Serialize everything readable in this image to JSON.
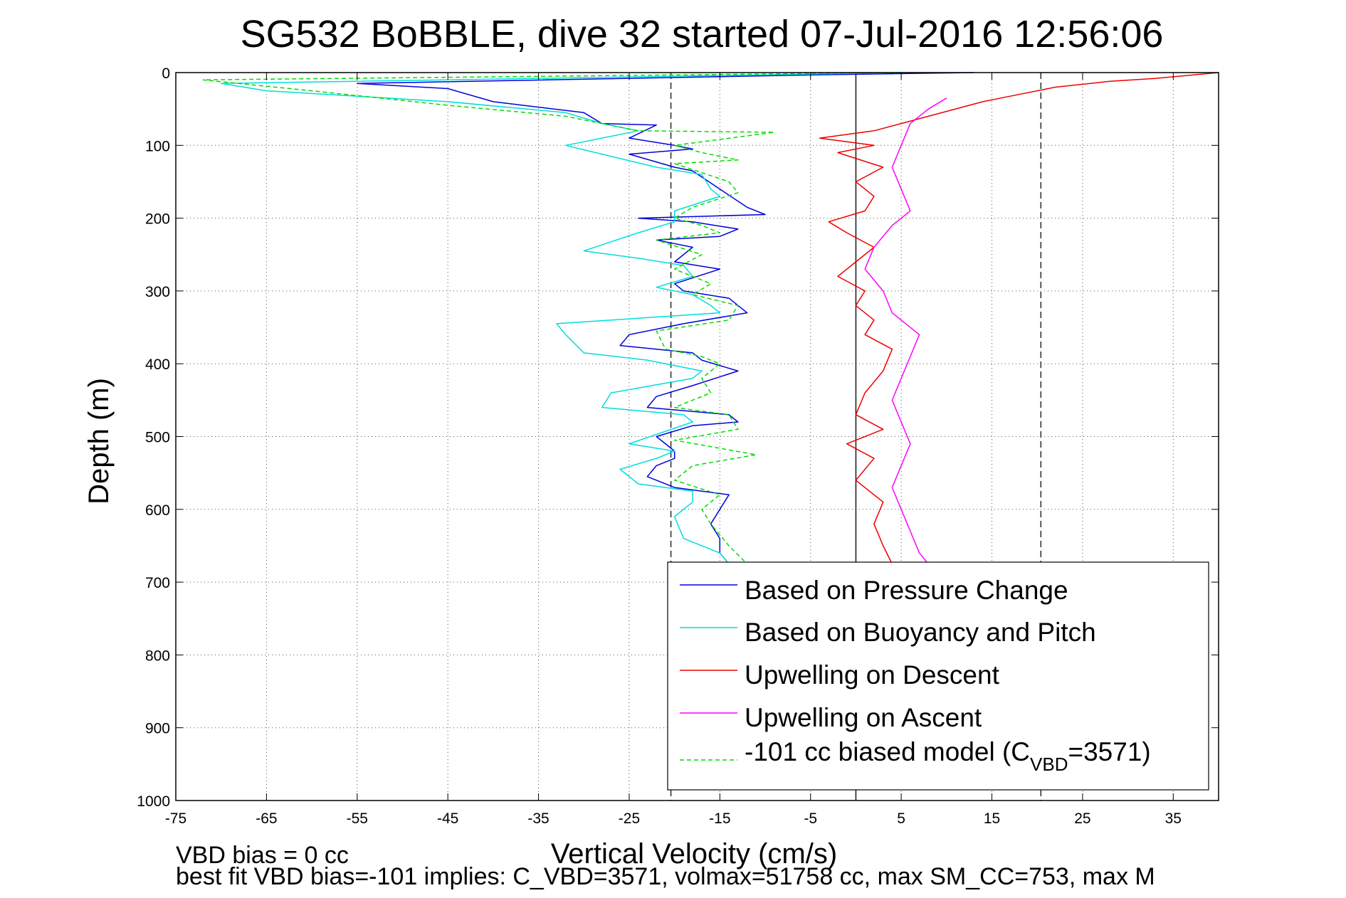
{
  "chart_data": {
    "type": "line",
    "title": "SG532 BoBBLE, dive 32 started 07-Jul-2016 12:56:06",
    "xlabel": "Vertical Velocity (cm/s)",
    "ylabel": "Depth (m)",
    "xlim": [
      -75,
      40
    ],
    "ylim": [
      0,
      1000
    ],
    "y_reversed": true,
    "grid": true,
    "x_ticks": [
      "-75",
      "-65",
      "-55",
      "-45",
      "-35",
      "-25",
      "-15",
      "-5",
      "5",
      "15",
      "25",
      "35"
    ],
    "x_tick_values": [
      -75,
      -65,
      -55,
      -45,
      -35,
      -25,
      -15,
      -5,
      5,
      15,
      25,
      35
    ],
    "y_ticks": [
      "0",
      "100",
      "200",
      "300",
      "400",
      "500",
      "600",
      "700",
      "800",
      "900",
      "1000"
    ],
    "y_tick_values": [
      0,
      100,
      200,
      300,
      400,
      500,
      600,
      700,
      800,
      900,
      1000
    ],
    "reference_lines": [
      {
        "x": -20.4,
        "style": "dashed",
        "color": "#333333"
      },
      {
        "x": 0,
        "style": "solid",
        "color": "#222222"
      },
      {
        "x": 20.4,
        "style": "dashed",
        "color": "#333333"
      }
    ],
    "legend_position": "lower-right",
    "series": [
      {
        "name": "Based on Pressure Change",
        "color": "#0000dd",
        "dash": false,
        "points": [
          [
            13,
            0
          ],
          [
            -4,
            3
          ],
          [
            -55,
            15
          ],
          [
            -45,
            22
          ],
          [
            -40,
            40
          ],
          [
            -30,
            55
          ],
          [
            -28,
            70
          ],
          [
            -22,
            72
          ],
          [
            -25,
            90
          ],
          [
            -20,
            100
          ],
          [
            -18,
            105
          ],
          [
            -25,
            112
          ],
          [
            -20,
            130
          ],
          [
            -18,
            135
          ],
          [
            -15,
            160
          ],
          [
            -12,
            185
          ],
          [
            -10,
            195
          ],
          [
            -24,
            200
          ],
          [
            -18,
            205
          ],
          [
            -13,
            215
          ],
          [
            -15,
            225
          ],
          [
            -22,
            230
          ],
          [
            -18,
            240
          ],
          [
            -20,
            260
          ],
          [
            -15,
            270
          ],
          [
            -20,
            290
          ],
          [
            -19,
            300
          ],
          [
            -14,
            310
          ],
          [
            -12,
            330
          ],
          [
            -19,
            345
          ],
          [
            -25,
            360
          ],
          [
            -26,
            375
          ],
          [
            -18,
            385
          ],
          [
            -17,
            395
          ],
          [
            -13,
            410
          ],
          [
            -18,
            430
          ],
          [
            -22,
            445
          ],
          [
            -23,
            460
          ],
          [
            -14,
            470
          ],
          [
            -13,
            480
          ],
          [
            -18,
            485
          ],
          [
            -22,
            500
          ],
          [
            -20,
            520
          ],
          [
            -20,
            530
          ],
          [
            -22,
            540
          ],
          [
            -23,
            555
          ],
          [
            -20,
            570
          ],
          [
            -14,
            580
          ],
          [
            -15,
            600
          ],
          [
            -16,
            620
          ],
          [
            -15,
            640
          ],
          [
            -15,
            660
          ],
          [
            -14,
            675
          ]
        ]
      },
      {
        "name": "Based on Buoyancy and Pitch",
        "color": "#00dddd",
        "dash": false,
        "points": [
          [
            5,
            0
          ],
          [
            -70,
            15
          ],
          [
            -65,
            25
          ],
          [
            -45,
            40
          ],
          [
            -32,
            55
          ],
          [
            -28,
            70
          ],
          [
            -24,
            80
          ],
          [
            -32,
            100
          ],
          [
            -28,
            112
          ],
          [
            -22,
            130
          ],
          [
            -17,
            140
          ],
          [
            -16,
            160
          ],
          [
            -15,
            170
          ],
          [
            -20,
            190
          ],
          [
            -20,
            205
          ],
          [
            -24,
            220
          ],
          [
            -30,
            245
          ],
          [
            -24,
            255
          ],
          [
            -19,
            265
          ],
          [
            -18,
            280
          ],
          [
            -22,
            295
          ],
          [
            -18,
            305
          ],
          [
            -16,
            320
          ],
          [
            -15,
            330
          ],
          [
            -33,
            345
          ],
          [
            -32,
            360
          ],
          [
            -30,
            385
          ],
          [
            -23,
            395
          ],
          [
            -17,
            410
          ],
          [
            -18,
            420
          ],
          [
            -27,
            440
          ],
          [
            -28,
            460
          ],
          [
            -19,
            470
          ],
          [
            -18,
            480
          ],
          [
            -25,
            510
          ],
          [
            -20,
            520
          ],
          [
            -22,
            530
          ],
          [
            -26,
            545
          ],
          [
            -24,
            565
          ],
          [
            -18,
            575
          ],
          [
            -18,
            590
          ],
          [
            -20,
            610
          ],
          [
            -19,
            640
          ],
          [
            -15,
            660
          ],
          [
            -14,
            675
          ]
        ]
      },
      {
        "name": "Upwelling on Descent",
        "color": "#ee0000",
        "dash": false,
        "points": [
          [
            40,
            0
          ],
          [
            33,
            8
          ],
          [
            28,
            12
          ],
          [
            22,
            20
          ],
          [
            18,
            30
          ],
          [
            14,
            40
          ],
          [
            8,
            60
          ],
          [
            2,
            80
          ],
          [
            -4,
            90
          ],
          [
            2,
            100
          ],
          [
            -2,
            110
          ],
          [
            3,
            130
          ],
          [
            0,
            150
          ],
          [
            2,
            170
          ],
          [
            1,
            190
          ],
          [
            -3,
            205
          ],
          [
            -1,
            220
          ],
          [
            2,
            240
          ],
          [
            0,
            260
          ],
          [
            -2,
            280
          ],
          [
            1,
            300
          ],
          [
            0,
            320
          ],
          [
            2,
            340
          ],
          [
            1,
            360
          ],
          [
            4,
            380
          ],
          [
            3,
            410
          ],
          [
            1,
            440
          ],
          [
            0,
            470
          ],
          [
            3,
            490
          ],
          [
            -1,
            510
          ],
          [
            2,
            530
          ],
          [
            0,
            560
          ],
          [
            3,
            590
          ],
          [
            2,
            620
          ],
          [
            3,
            650
          ],
          [
            4,
            675
          ]
        ]
      },
      {
        "name": "Upwelling on Ascent",
        "color": "#ff00ff",
        "dash": false,
        "points": [
          [
            10,
            35
          ],
          [
            8,
            50
          ],
          [
            6,
            70
          ],
          [
            5,
            100
          ],
          [
            4,
            130
          ],
          [
            5,
            160
          ],
          [
            6,
            190
          ],
          [
            4,
            210
          ],
          [
            2,
            240
          ],
          [
            1,
            270
          ],
          [
            3,
            300
          ],
          [
            4,
            330
          ],
          [
            7,
            360
          ],
          [
            6,
            390
          ],
          [
            5,
            420
          ],
          [
            4,
            450
          ],
          [
            5,
            480
          ],
          [
            6,
            510
          ],
          [
            5,
            540
          ],
          [
            4,
            570
          ],
          [
            5,
            600
          ],
          [
            6,
            630
          ],
          [
            7,
            660
          ],
          [
            8,
            675
          ]
        ]
      },
      {
        "name": "-101 cc biased model (C_VBD=3571)",
        "color": "#00dd00",
        "dash": true,
        "points": [
          [
            5,
            0
          ],
          [
            -72,
            10
          ],
          [
            -60,
            25
          ],
          [
            -45,
            45
          ],
          [
            -32,
            60
          ],
          [
            -24,
            80
          ],
          [
            -9,
            82
          ],
          [
            -20,
            100
          ],
          [
            -17,
            110
          ],
          [
            -13,
            120
          ],
          [
            -20,
            125
          ],
          [
            -14,
            150
          ],
          [
            -13,
            165
          ],
          [
            -18,
            185
          ],
          [
            -20,
            200
          ],
          [
            -17,
            210
          ],
          [
            -15,
            220
          ],
          [
            -22,
            230
          ],
          [
            -17,
            250
          ],
          [
            -20,
            270
          ],
          [
            -16,
            290
          ],
          [
            -18,
            305
          ],
          [
            -13,
            320
          ],
          [
            -14,
            340
          ],
          [
            -22,
            355
          ],
          [
            -21,
            380
          ],
          [
            -17,
            390
          ],
          [
            -15,
            400
          ],
          [
            -17,
            420
          ],
          [
            -16,
            440
          ],
          [
            -20,
            460
          ],
          [
            -14,
            470
          ],
          [
            -13,
            490
          ],
          [
            -20,
            505
          ],
          [
            -11,
            525
          ],
          [
            -18,
            540
          ],
          [
            -20,
            560
          ],
          [
            -15,
            580
          ],
          [
            -17,
            600
          ],
          [
            -16,
            620
          ],
          [
            -14,
            650
          ],
          [
            -12,
            675
          ]
        ]
      }
    ]
  },
  "legend": {
    "items": [
      {
        "label": "Based on Pressure Change"
      },
      {
        "label": "Based on Buoyancy and Pitch"
      },
      {
        "label": "Upwelling on Descent"
      },
      {
        "label": "Upwelling on Ascent"
      },
      {
        "label_pre": "-101 cc biased model (C",
        "label_sub": "VBD",
        "label_post": "=3571)"
      }
    ]
  },
  "footer": {
    "line1": "VBD bias = 0 cc",
    "line2": "best fit VBD bias=-101 implies: C_VBD=3571, volmax=51758 cc, max SM_CC=753, max M"
  }
}
